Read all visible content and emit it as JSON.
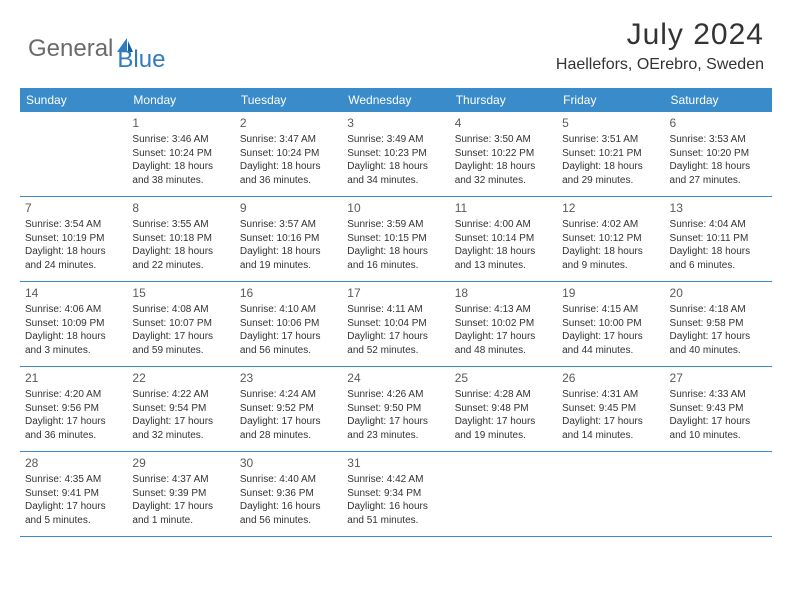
{
  "brand": {
    "part1": "General",
    "part2": "Blue"
  },
  "title": "July 2024",
  "location": "Haellefors, OErebro, Sweden",
  "colors": {
    "header_bg": "#3a8bc9",
    "header_text": "#ffffff",
    "border": "#3a8bc9",
    "title_color": "#333333",
    "logo_gray": "#6b6b6b",
    "logo_blue": "#2f7cc0"
  },
  "day_names": [
    "Sunday",
    "Monday",
    "Tuesday",
    "Wednesday",
    "Thursday",
    "Friday",
    "Saturday"
  ],
  "weeks": [
    [
      null,
      {
        "d": "1",
        "sr": "Sunrise: 3:46 AM",
        "ss": "Sunset: 10:24 PM",
        "dl1": "Daylight: 18 hours",
        "dl2": "and 38 minutes."
      },
      {
        "d": "2",
        "sr": "Sunrise: 3:47 AM",
        "ss": "Sunset: 10:24 PM",
        "dl1": "Daylight: 18 hours",
        "dl2": "and 36 minutes."
      },
      {
        "d": "3",
        "sr": "Sunrise: 3:49 AM",
        "ss": "Sunset: 10:23 PM",
        "dl1": "Daylight: 18 hours",
        "dl2": "and 34 minutes."
      },
      {
        "d": "4",
        "sr": "Sunrise: 3:50 AM",
        "ss": "Sunset: 10:22 PM",
        "dl1": "Daylight: 18 hours",
        "dl2": "and 32 minutes."
      },
      {
        "d": "5",
        "sr": "Sunrise: 3:51 AM",
        "ss": "Sunset: 10:21 PM",
        "dl1": "Daylight: 18 hours",
        "dl2": "and 29 minutes."
      },
      {
        "d": "6",
        "sr": "Sunrise: 3:53 AM",
        "ss": "Sunset: 10:20 PM",
        "dl1": "Daylight: 18 hours",
        "dl2": "and 27 minutes."
      }
    ],
    [
      {
        "d": "7",
        "sr": "Sunrise: 3:54 AM",
        "ss": "Sunset: 10:19 PM",
        "dl1": "Daylight: 18 hours",
        "dl2": "and 24 minutes."
      },
      {
        "d": "8",
        "sr": "Sunrise: 3:55 AM",
        "ss": "Sunset: 10:18 PM",
        "dl1": "Daylight: 18 hours",
        "dl2": "and 22 minutes."
      },
      {
        "d": "9",
        "sr": "Sunrise: 3:57 AM",
        "ss": "Sunset: 10:16 PM",
        "dl1": "Daylight: 18 hours",
        "dl2": "and 19 minutes."
      },
      {
        "d": "10",
        "sr": "Sunrise: 3:59 AM",
        "ss": "Sunset: 10:15 PM",
        "dl1": "Daylight: 18 hours",
        "dl2": "and 16 minutes."
      },
      {
        "d": "11",
        "sr": "Sunrise: 4:00 AM",
        "ss": "Sunset: 10:14 PM",
        "dl1": "Daylight: 18 hours",
        "dl2": "and 13 minutes."
      },
      {
        "d": "12",
        "sr": "Sunrise: 4:02 AM",
        "ss": "Sunset: 10:12 PM",
        "dl1": "Daylight: 18 hours",
        "dl2": "and 9 minutes."
      },
      {
        "d": "13",
        "sr": "Sunrise: 4:04 AM",
        "ss": "Sunset: 10:11 PM",
        "dl1": "Daylight: 18 hours",
        "dl2": "and 6 minutes."
      }
    ],
    [
      {
        "d": "14",
        "sr": "Sunrise: 4:06 AM",
        "ss": "Sunset: 10:09 PM",
        "dl1": "Daylight: 18 hours",
        "dl2": "and 3 minutes."
      },
      {
        "d": "15",
        "sr": "Sunrise: 4:08 AM",
        "ss": "Sunset: 10:07 PM",
        "dl1": "Daylight: 17 hours",
        "dl2": "and 59 minutes."
      },
      {
        "d": "16",
        "sr": "Sunrise: 4:10 AM",
        "ss": "Sunset: 10:06 PM",
        "dl1": "Daylight: 17 hours",
        "dl2": "and 56 minutes."
      },
      {
        "d": "17",
        "sr": "Sunrise: 4:11 AM",
        "ss": "Sunset: 10:04 PM",
        "dl1": "Daylight: 17 hours",
        "dl2": "and 52 minutes."
      },
      {
        "d": "18",
        "sr": "Sunrise: 4:13 AM",
        "ss": "Sunset: 10:02 PM",
        "dl1": "Daylight: 17 hours",
        "dl2": "and 48 minutes."
      },
      {
        "d": "19",
        "sr": "Sunrise: 4:15 AM",
        "ss": "Sunset: 10:00 PM",
        "dl1": "Daylight: 17 hours",
        "dl2": "and 44 minutes."
      },
      {
        "d": "20",
        "sr": "Sunrise: 4:18 AM",
        "ss": "Sunset: 9:58 PM",
        "dl1": "Daylight: 17 hours",
        "dl2": "and 40 minutes."
      }
    ],
    [
      {
        "d": "21",
        "sr": "Sunrise: 4:20 AM",
        "ss": "Sunset: 9:56 PM",
        "dl1": "Daylight: 17 hours",
        "dl2": "and 36 minutes."
      },
      {
        "d": "22",
        "sr": "Sunrise: 4:22 AM",
        "ss": "Sunset: 9:54 PM",
        "dl1": "Daylight: 17 hours",
        "dl2": "and 32 minutes."
      },
      {
        "d": "23",
        "sr": "Sunrise: 4:24 AM",
        "ss": "Sunset: 9:52 PM",
        "dl1": "Daylight: 17 hours",
        "dl2": "and 28 minutes."
      },
      {
        "d": "24",
        "sr": "Sunrise: 4:26 AM",
        "ss": "Sunset: 9:50 PM",
        "dl1": "Daylight: 17 hours",
        "dl2": "and 23 minutes."
      },
      {
        "d": "25",
        "sr": "Sunrise: 4:28 AM",
        "ss": "Sunset: 9:48 PM",
        "dl1": "Daylight: 17 hours",
        "dl2": "and 19 minutes."
      },
      {
        "d": "26",
        "sr": "Sunrise: 4:31 AM",
        "ss": "Sunset: 9:45 PM",
        "dl1": "Daylight: 17 hours",
        "dl2": "and 14 minutes."
      },
      {
        "d": "27",
        "sr": "Sunrise: 4:33 AM",
        "ss": "Sunset: 9:43 PM",
        "dl1": "Daylight: 17 hours",
        "dl2": "and 10 minutes."
      }
    ],
    [
      {
        "d": "28",
        "sr": "Sunrise: 4:35 AM",
        "ss": "Sunset: 9:41 PM",
        "dl1": "Daylight: 17 hours",
        "dl2": "and 5 minutes."
      },
      {
        "d": "29",
        "sr": "Sunrise: 4:37 AM",
        "ss": "Sunset: 9:39 PM",
        "dl1": "Daylight: 17 hours",
        "dl2": "and 1 minute."
      },
      {
        "d": "30",
        "sr": "Sunrise: 4:40 AM",
        "ss": "Sunset: 9:36 PM",
        "dl1": "Daylight: 16 hours",
        "dl2": "and 56 minutes."
      },
      {
        "d": "31",
        "sr": "Sunrise: 4:42 AM",
        "ss": "Sunset: 9:34 PM",
        "dl1": "Daylight: 16 hours",
        "dl2": "and 51 minutes."
      },
      null,
      null,
      null
    ]
  ]
}
